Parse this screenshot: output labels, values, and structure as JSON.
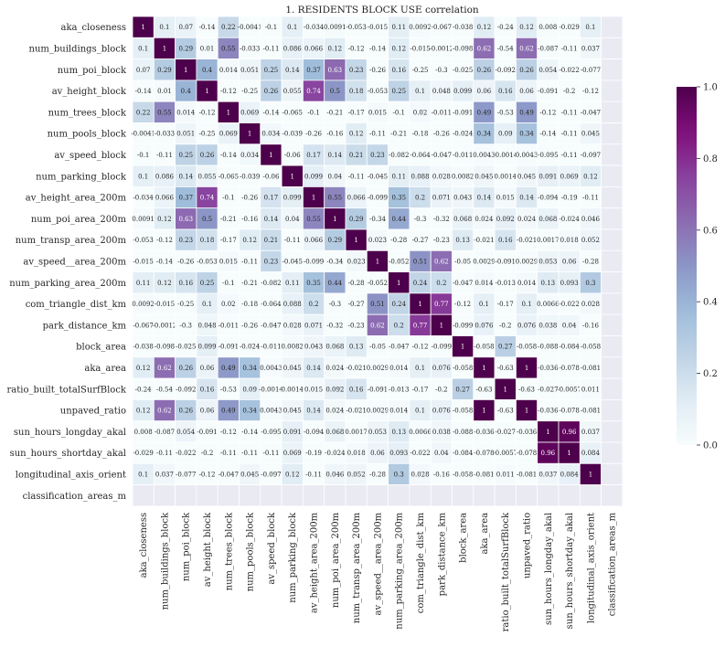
{
  "chart_data": {
    "type": "heatmap",
    "title": "1. RESIDENTS BLOCK USE correlation",
    "xlabel": "",
    "ylabel": "",
    "labels": [
      "aka_closeness",
      "num_buildings_block",
      "num_poi_block",
      "av_height_block",
      "num_trees_block",
      "num_pools_block",
      "av_speed_block",
      "num_parking_block",
      "av_height_area_200m",
      "num_poi_area_200m",
      "num_transp_area_200m",
      "av_speed__area_200m",
      "num_parking_area_200m",
      "com_triangle_dist_km",
      "park_distance_km",
      "block_area",
      "aka_area",
      "ratio_built_totalSurfBlock",
      "unpaved_ratio",
      "sun_hours_longday_akal",
      "sun_hours_shortday_akal",
      "longitudinal_axis_orient",
      "classification_areas_m"
    ],
    "annotations": [
      [
        "1",
        "0.1",
        "0.07",
        "-0.14",
        "0.22",
        "-0.0041",
        "-0.1",
        "0.1",
        "-0.034",
        "0.0091",
        "-0.053",
        "-0.015",
        "0.11",
        "0.0092",
        "-0.067",
        "-0.038",
        "0.12",
        "-0.24",
        "0.12",
        "0.008",
        "-0.029",
        "0.1",
        ""
      ],
      [
        "0.1",
        "1",
        "0.29",
        "0.01",
        "0.55",
        "-0.033",
        "-0.11",
        "0.086",
        "0.066",
        "0.12",
        "-0.12",
        "-0.14",
        "0.12",
        "-0.015",
        "-0.0012",
        "-0.098",
        "0.62",
        "-0.54",
        "0.62",
        "-0.087",
        "-0.11",
        "0.037",
        ""
      ],
      [
        "0.07",
        "0.29",
        "1",
        "0.4",
        "0.014",
        "0.051",
        "0.25",
        "0.14",
        "0.37",
        "0.63",
        "0.23",
        "-0.26",
        "0.16",
        "-0.25",
        "-0.3",
        "-0.025",
        "0.26",
        "-0.092",
        "0.26",
        "0.054",
        "-0.022",
        "-0.077",
        ""
      ],
      [
        "-0.14",
        "0.01",
        "0.4",
        "1",
        "-0.12",
        "-0.25",
        "0.26",
        "0.055",
        "0.74",
        "0.5",
        "0.18",
        "-0.053",
        "0.25",
        "0.1",
        "0.048",
        "0.099",
        "0.06",
        "0.16",
        "0.06",
        "-0.091",
        "-0.2",
        "-0.12",
        ""
      ],
      [
        "0.22",
        "0.55",
        "0.014",
        "-0.12",
        "1",
        "0.069",
        "-0.14",
        "-0.065",
        "-0.1",
        "-0.21",
        "-0.17",
        "0.015",
        "-0.1",
        "0.02",
        "-0.011",
        "-0.091",
        "0.49",
        "-0.53",
        "0.49",
        "-0.12",
        "-0.11",
        "-0.047",
        ""
      ],
      [
        "-0.0041",
        "-0.033",
        "0.051",
        "-0.25",
        "0.069",
        "1",
        "0.034",
        "-0.039",
        "-0.26",
        "-0.16",
        "0.12",
        "-0.11",
        "-0.21",
        "-0.18",
        "-0.26",
        "-0.024",
        "0.34",
        "0.09",
        "0.34",
        "-0.14",
        "-0.11",
        "0.045",
        ""
      ],
      [
        "-0.1",
        "-0.11",
        "0.25",
        "0.26",
        "-0.14",
        "0.034",
        "1",
        "-0.06",
        "0.17",
        "0.14",
        "0.21",
        "0.23",
        "-0.082",
        "-0.064",
        "-0.047",
        "-0.011",
        "0.0043",
        "-0.0014",
        "0.0043",
        "-0.095",
        "-0.11",
        "-0.097",
        ""
      ],
      [
        "0.1",
        "0.086",
        "0.14",
        "0.055",
        "-0.065",
        "-0.039",
        "-0.06",
        "1",
        "0.099",
        "0.04",
        "-0.11",
        "-0.045",
        "0.11",
        "0.088",
        "0.028",
        "0.0082",
        "0.045",
        "0.0014",
        "0.045",
        "0.091",
        "0.069",
        "0.12",
        ""
      ],
      [
        "-0.034",
        "0.066",
        "0.37",
        "0.74",
        "-0.1",
        "-0.26",
        "0.17",
        "0.099",
        "1",
        "0.55",
        "0.066",
        "-0.099",
        "0.35",
        "0.2",
        "0.071",
        "0.043",
        "0.14",
        "0.015",
        "0.14",
        "-0.094",
        "-0.19",
        "-0.11",
        ""
      ],
      [
        "0.0091",
        "0.12",
        "0.63",
        "0.5",
        "-0.21",
        "-0.16",
        "0.14",
        "0.04",
        "0.55",
        "1",
        "0.29",
        "-0.34",
        "0.44",
        "-0.3",
        "-0.32",
        "0.068",
        "0.024",
        "0.092",
        "0.024",
        "0.068",
        "-0.024",
        "0.046",
        ""
      ],
      [
        "-0.053",
        "-0.12",
        "0.23",
        "0.18",
        "-0.17",
        "0.12",
        "0.21",
        "-0.11",
        "0.066",
        "0.29",
        "1",
        "0.023",
        "-0.28",
        "-0.27",
        "-0.23",
        "0.13",
        "-0.021",
        "0.16",
        "-0.021",
        "0.0017",
        "0.018",
        "0.052",
        ""
      ],
      [
        "-0.015",
        "-0.14",
        "-0.26",
        "-0.053",
        "0.015",
        "-0.11",
        "0.23",
        "-0.045",
        "-0.099",
        "-0.34",
        "0.023",
        "1",
        "-0.052",
        "0.51",
        "0.62",
        "-0.05",
        "0.0029",
        "-0.091",
        "0.0029",
        "0.053",
        "0.06",
        "-0.28",
        ""
      ],
      [
        "0.11",
        "0.12",
        "0.16",
        "0.25",
        "-0.1",
        "-0.21",
        "-0.082",
        "0.11",
        "0.35",
        "0.44",
        "-0.28",
        "-0.052",
        "1",
        "0.24",
        "0.2",
        "-0.047",
        "0.014",
        "-0.013",
        "0.014",
        "0.13",
        "0.093",
        "0.3",
        ""
      ],
      [
        "0.0092",
        "-0.015",
        "-0.25",
        "0.1",
        "0.02",
        "-0.18",
        "-0.064",
        "0.088",
        "0.2",
        "-0.3",
        "-0.27",
        "0.51",
        "0.24",
        "1",
        "0.77",
        "-0.12",
        "0.1",
        "-0.17",
        "0.1",
        "0.0066",
        "-0.022",
        "0.028",
        ""
      ],
      [
        "-0.067",
        "-0.0012",
        "-0.3",
        "0.048",
        "-0.011",
        "-0.26",
        "-0.047",
        "0.028",
        "0.071",
        "-0.32",
        "-0.23",
        "0.62",
        "0.2",
        "0.77",
        "1",
        "-0.099",
        "0.076",
        "-0.2",
        "0.076",
        "0.038",
        "0.04",
        "-0.16",
        ""
      ],
      [
        "-0.038",
        "-0.098",
        "-0.025",
        "0.099",
        "-0.091",
        "-0.024",
        "-0.011",
        "0.0082",
        "0.043",
        "0.068",
        "0.13",
        "-0.05",
        "-0.047",
        "-0.12",
        "-0.099",
        "1",
        "-0.058",
        "0.27",
        "-0.058",
        "-0.088",
        "-0.084",
        "-0.058",
        ""
      ],
      [
        "0.12",
        "0.62",
        "0.26",
        "0.06",
        "0.49",
        "0.34",
        "0.0043",
        "0.045",
        "0.14",
        "0.024",
        "-0.021",
        "0.0029",
        "0.014",
        "0.1",
        "0.076",
        "-0.058",
        "1",
        "-0.63",
        "1",
        "-0.036",
        "-0.078",
        "-0.081",
        ""
      ],
      [
        "-0.24",
        "-0.54",
        "-0.092",
        "0.16",
        "-0.53",
        "0.09",
        "-0.0014",
        "0.0014",
        "0.015",
        "0.092",
        "0.16",
        "-0.091",
        "-0.013",
        "-0.17",
        "-0.2",
        "0.27",
        "-0.63",
        "1",
        "-0.63",
        "-0.027",
        "-0.0057",
        "0.011",
        ""
      ],
      [
        "0.12",
        "0.62",
        "0.26",
        "0.06",
        "0.49",
        "0.34",
        "0.0043",
        "0.045",
        "0.14",
        "0.024",
        "-0.021",
        "0.0029",
        "0.014",
        "0.1",
        "0.076",
        "-0.058",
        "1",
        "-0.63",
        "1",
        "-0.036",
        "-0.078",
        "-0.081",
        ""
      ],
      [
        "0.008",
        "-0.087",
        "0.054",
        "-0.091",
        "-0.12",
        "-0.14",
        "-0.095",
        "0.091",
        "-0.094",
        "0.068",
        "0.0017",
        "0.053",
        "0.13",
        "0.0066",
        "0.038",
        "-0.088",
        "-0.036",
        "-0.027",
        "-0.036",
        "1",
        "0.96",
        "0.037",
        ""
      ],
      [
        "-0.029",
        "-0.11",
        "-0.022",
        "-0.2",
        "-0.11",
        "-0.11",
        "-0.11",
        "0.069",
        "-0.19",
        "-0.024",
        "0.018",
        "0.06",
        "0.093",
        "-0.022",
        "0.04",
        "-0.084",
        "-0.078",
        "-0.0057",
        "-0.078",
        "0.96",
        "1",
        "0.084",
        ""
      ],
      [
        "0.1",
        "0.037",
        "-0.077",
        "-0.12",
        "-0.047",
        "0.045",
        "-0.097",
        "0.12",
        "-0.11",
        "0.046",
        "0.052",
        "-0.28",
        "0.3",
        "0.028",
        "-0.16",
        "-0.058",
        "-0.081",
        "0.011",
        "-0.081",
        "0.037",
        "0.084",
        "1",
        ""
      ],
      [
        "",
        "",
        "",
        "",
        "",
        "",
        "",
        "",
        "",
        "",
        "",
        "",
        "",
        "",
        "",
        "",
        "",
        "",
        "",
        "",
        "",
        "",
        ""
      ]
    ],
    "colorbar": {
      "min": 0.0,
      "max": 1.0,
      "ticks": [
        "0.0",
        "0.2",
        "0.4",
        "0.6",
        "0.8",
        "1.0"
      ],
      "colormap": "BuPu"
    },
    "missing_color": "#eaeaf2"
  }
}
